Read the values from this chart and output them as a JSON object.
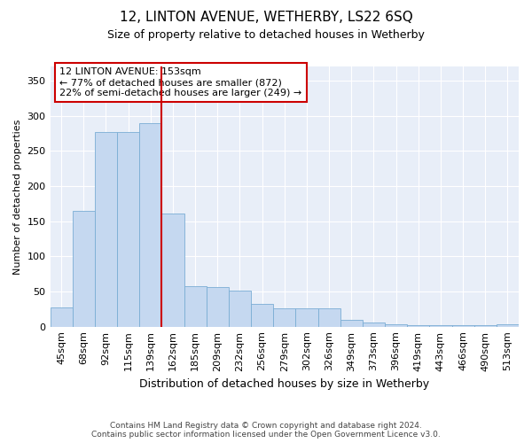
{
  "title": "12, LINTON AVENUE, WETHERBY, LS22 6SQ",
  "subtitle": "Size of property relative to detached houses in Wetherby",
  "xlabel": "Distribution of detached houses by size in Wetherby",
  "ylabel": "Number of detached properties",
  "categories": [
    "45sqm",
    "68sqm",
    "92sqm",
    "115sqm",
    "139sqm",
    "162sqm",
    "185sqm",
    "209sqm",
    "232sqm",
    "256sqm",
    "279sqm",
    "302sqm",
    "326sqm",
    "349sqm",
    "373sqm",
    "396sqm",
    "419sqm",
    "443sqm",
    "466sqm",
    "490sqm",
    "513sqm"
  ],
  "values": [
    27,
    165,
    277,
    277,
    289,
    161,
    57,
    56,
    51,
    32,
    26,
    26,
    26,
    10,
    6,
    4,
    2,
    2,
    2,
    2,
    3
  ],
  "bar_color": "#c5d8f0",
  "bar_edge_color": "#7aadd4",
  "vline_x_index": 4.5,
  "vline_color": "#cc0000",
  "annotation_text": "12 LINTON AVENUE: 153sqm\n← 77% of detached houses are smaller (872)\n22% of semi-detached houses are larger (249) →",
  "annotation_box_facecolor": "#ffffff",
  "annotation_box_edgecolor": "#cc0000",
  "plot_bg_color": "#e8eef8",
  "fig_bg_color": "#ffffff",
  "footer_text": "Contains HM Land Registry data © Crown copyright and database right 2024.\nContains public sector information licensed under the Open Government Licence v3.0.",
  "ylim": [
    0,
    370
  ],
  "yticks": [
    0,
    50,
    100,
    150,
    200,
    250,
    300,
    350
  ],
  "title_fontsize": 11,
  "subtitle_fontsize": 9,
  "ylabel_fontsize": 8,
  "xlabel_fontsize": 9,
  "tick_fontsize": 8,
  "annot_fontsize": 8,
  "footer_fontsize": 6.5
}
